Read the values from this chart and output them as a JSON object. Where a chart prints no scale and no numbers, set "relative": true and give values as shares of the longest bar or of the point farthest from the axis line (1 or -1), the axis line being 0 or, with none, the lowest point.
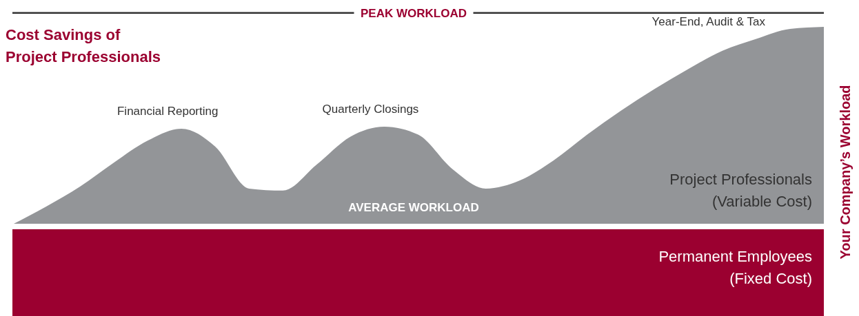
{
  "chart_data": {
    "type": "area",
    "relative": true,
    "title": "Cost Savings of Project Professionals",
    "ylabel": "Your Company’s Workload",
    "categories": [
      null,
      null,
      null,
      null,
      null,
      null,
      null,
      null,
      null,
      null,
      null,
      null,
      null,
      null,
      null,
      null,
      null,
      null,
      null,
      null,
      null,
      null,
      null,
      null,
      null
    ],
    "series": [
      {
        "name": "Permanent Employees (Fixed Cost)",
        "color": "#9b0030",
        "values": [
          -0.45,
          -0.45,
          -0.45,
          -0.45,
          -0.45,
          -0.45,
          -0.45,
          -0.45,
          -0.45,
          -0.45,
          -0.45,
          -0.45,
          -0.45,
          -0.45,
          -0.45,
          -0.45,
          -0.45,
          -0.45,
          -0.45,
          -0.45,
          -0.45,
          -0.45,
          -0.45,
          -0.45,
          -0.45
        ]
      },
      {
        "name": "Project Professionals (Variable Cost)",
        "color": "#939598",
        "values": [
          0.01,
          0.1,
          0.2,
          0.32,
          0.43,
          0.49,
          0.4,
          0.19,
          0.18,
          0.31,
          0.45,
          0.5,
          0.46,
          0.29,
          0.19,
          0.23,
          0.33,
          0.46,
          0.58,
          0.69,
          0.79,
          0.88,
          0.94,
          0.99,
          1
        ]
      }
    ],
    "ref_lines": [
      {
        "axis": "y",
        "value": 1.07,
        "label": "PEAK WORKLOAD",
        "color": "#333333"
      },
      {
        "axis": "y",
        "value": 0,
        "label": "AVERAGE WORKLOAD",
        "color": "#ffffff"
      }
    ],
    "annotations": [
      "Financial Reporting",
      "Quarterly Closings",
      "Year-End, Audit & Tax"
    ]
  }
}
